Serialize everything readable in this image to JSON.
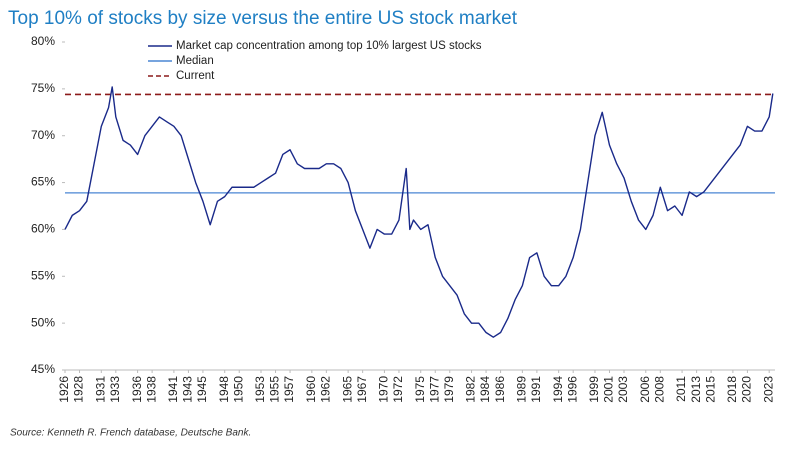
{
  "chart_data": {
    "type": "line",
    "title": "Top 10% of stocks by size versus the entire US stock market",
    "source": "Source: Kenneth R. French database, Deutsche Bank.",
    "ylim": [
      45,
      80
    ],
    "yticks": [
      {
        "value": 45,
        "label": "45%"
      },
      {
        "value": 50,
        "label": "50%"
      },
      {
        "value": 55,
        "label": "55%"
      },
      {
        "value": 60,
        "label": "60%"
      },
      {
        "value": 65,
        "label": "65%"
      },
      {
        "value": 70,
        "label": "70%"
      },
      {
        "value": 75,
        "label": "75%"
      },
      {
        "value": 80,
        "label": "80%"
      }
    ],
    "xlim": [
      1926,
      2023.8
    ],
    "xticks": [
      1926,
      1928,
      1931,
      1933,
      1936,
      1938,
      1941,
      1943,
      1945,
      1948,
      1950,
      1953,
      1955,
      1957,
      1960,
      1962,
      1965,
      1967,
      1970,
      1972,
      1975,
      1977,
      1979,
      1982,
      1984,
      1986,
      1989,
      1991,
      1994,
      1996,
      1999,
      2001,
      2003,
      2006,
      2008,
      2011,
      2013,
      2015,
      2018,
      2020,
      2023
    ],
    "series": [
      {
        "name": "Market cap concentration among top 10% largest US stocks",
        "color": "#1a2a8a",
        "x": [
          1926,
          1927,
          1928,
          1929,
          1930,
          1931,
          1932,
          1932.5,
          1933,
          1934,
          1935,
          1936,
          1937,
          1938,
          1939,
          1940,
          1941,
          1942,
          1943,
          1944,
          1945,
          1946,
          1947,
          1948,
          1949,
          1950,
          1951,
          1952,
          1953,
          1954,
          1955,
          1956,
          1957,
          1958,
          1959,
          1960,
          1961,
          1962,
          1963,
          1964,
          1965,
          1966,
          1967,
          1968,
          1969,
          1970,
          1971,
          1972,
          1973,
          1973.5,
          1974,
          1975,
          1976,
          1977,
          1978,
          1979,
          1980,
          1981,
          1982,
          1983,
          1984,
          1985,
          1986,
          1987,
          1988,
          1989,
          1990,
          1991,
          1992,
          1993,
          1994,
          1995,
          1996,
          1997,
          1998,
          1999,
          2000,
          2001,
          2002,
          2003,
          2004,
          2005,
          2006,
          2007,
          2008,
          2009,
          2010,
          2011,
          2012,
          2013,
          2014,
          2015,
          2016,
          2017,
          2018,
          2019,
          2020,
          2021,
          2022,
          2023,
          2023.5
        ],
        "values": [
          60,
          61.5,
          62,
          63,
          67,
          71,
          73,
          75.2,
          72,
          69.5,
          69,
          68,
          70,
          71,
          72,
          71.5,
          71,
          70,
          67.5,
          65,
          63,
          60.5,
          63,
          63.5,
          64.5,
          64.5,
          64.5,
          64.5,
          65,
          65.5,
          66,
          68,
          68.5,
          67,
          66.5,
          66.5,
          66.5,
          67,
          67,
          66.5,
          65,
          62,
          60,
          58,
          60,
          59.5,
          59.5,
          61,
          66.5,
          60,
          61,
          60,
          60.5,
          57,
          55,
          54,
          53,
          51,
          50,
          50,
          49,
          48.5,
          49,
          50.5,
          52.5,
          54,
          57,
          57.5,
          55,
          54,
          54,
          55,
          57,
          60,
          65,
          70,
          72.5,
          69,
          67,
          65.5,
          63,
          61,
          60,
          61.5,
          64.5,
          62,
          62.5,
          61.5,
          64,
          63.5,
          64,
          65,
          66,
          67,
          68,
          69,
          71,
          70.5,
          70.5,
          72,
          74.5
        ]
      }
    ],
    "reference_lines": [
      {
        "name": "Median",
        "value": 63.9,
        "color": "#4a86d4",
        "dash": false
      },
      {
        "name": "Current",
        "value": 74.4,
        "color": "#8b1a1a",
        "dash": true
      }
    ]
  }
}
